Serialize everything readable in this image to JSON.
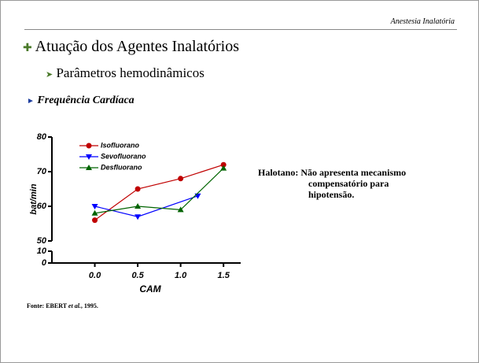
{
  "header": {
    "section": "Anestesia Inalatória"
  },
  "title": "Atuação dos Agentes Inalatórios",
  "subtitle": "Parâmetros hemodinâmicos",
  "topic": "Frequência Cardíaca",
  "note": {
    "label": "Halotano:",
    "lines": [
      "Não apresenta mecanismo",
      "compensatório para",
      "hipotensão."
    ]
  },
  "source": {
    "prefix": "Fonte: EBERT",
    "italic": "et al.",
    "suffix": ", 1995."
  },
  "chart_data": {
    "type": "line",
    "x_label": "CAM",
    "y_label": "bat/min",
    "xlim": [
      -0.5,
      1.7
    ],
    "xticks": [
      {
        "value": 0,
        "label": "0.0"
      },
      0.5,
      {
        "value": 1,
        "label": "1.0"
      },
      1.5
    ],
    "ylim": [
      50,
      80
    ],
    "yticks": [
      50,
      60,
      70,
      80
    ],
    "ylim_lower": [
      0,
      10
    ],
    "yticks_lower": [
      0,
      10
    ],
    "series": [
      {
        "name": "Isofluorano",
        "color": "#c00000",
        "marker": "circle",
        "x": [
          0,
          0.5,
          1,
          1.5
        ],
        "values": [
          56,
          65,
          68,
          72
        ]
      },
      {
        "name": "Sevofluorano",
        "color": "#0000ff",
        "marker": "triangle-down",
        "x": [
          0,
          0.5,
          1.2
        ],
        "values": [
          60,
          57,
          63
        ]
      },
      {
        "name": "Desfluorano",
        "color": "#006400",
        "marker": "triangle-up",
        "x": [
          0,
          0.5,
          1,
          1.5
        ],
        "values": [
          58,
          60,
          59,
          71
        ]
      }
    ]
  }
}
